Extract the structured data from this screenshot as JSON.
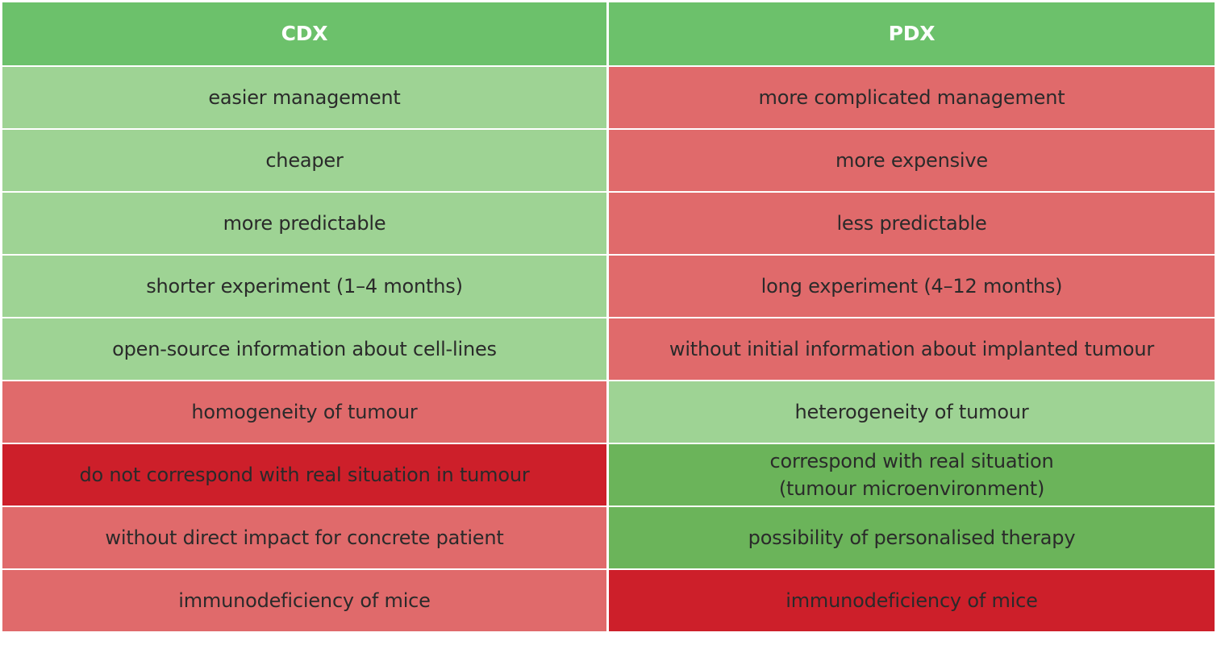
{
  "colors": {
    "header": "#6cc16b",
    "light_green": "#9ed394",
    "dark_green": "#6bb45a",
    "light_red": "#e06a6b",
    "dark_red": "#cd1f2a",
    "text": "#2a2a2a",
    "header_text": "#ffffff"
  },
  "table": {
    "headers": [
      "CDX",
      "PDX"
    ],
    "rows": [
      {
        "cdx": {
          "text": "easier management",
          "tone": "light_green"
        },
        "pdx": {
          "text": "more complicated management",
          "tone": "light_red"
        }
      },
      {
        "cdx": {
          "text": "cheaper",
          "tone": "light_green"
        },
        "pdx": {
          "text": "more expensive",
          "tone": "light_red"
        }
      },
      {
        "cdx": {
          "text": "more predictable",
          "tone": "light_green"
        },
        "pdx": {
          "text": "less predictable",
          "tone": "light_red"
        }
      },
      {
        "cdx": {
          "text": "shorter experiment (1–4 months)",
          "tone": "light_green"
        },
        "pdx": {
          "text": "long experiment (4–12 months)",
          "tone": "light_red"
        }
      },
      {
        "cdx": {
          "text": "open-source information about cell-lines",
          "tone": "light_green"
        },
        "pdx": {
          "text": "without initial information about implanted tumour",
          "tone": "light_red"
        }
      },
      {
        "cdx": {
          "text": "homogeneity of tumour",
          "tone": "light_red"
        },
        "pdx": {
          "text": "heterogeneity of tumour",
          "tone": "light_green"
        }
      },
      {
        "cdx": {
          "text": "do not correspond with real situation in tumour",
          "tone": "dark_red"
        },
        "pdx": {
          "text": "correspond with real situation\n(tumour microenvironment)",
          "tone": "dark_green"
        }
      },
      {
        "cdx": {
          "text": "without direct impact for concrete patient",
          "tone": "light_red"
        },
        "pdx": {
          "text": "possibility of personalised therapy",
          "tone": "dark_green"
        }
      },
      {
        "cdx": {
          "text": "immunodeficiency of mice",
          "tone": "light_red"
        },
        "pdx": {
          "text": "immunodeficiency of mice",
          "tone": "dark_red"
        }
      }
    ]
  }
}
